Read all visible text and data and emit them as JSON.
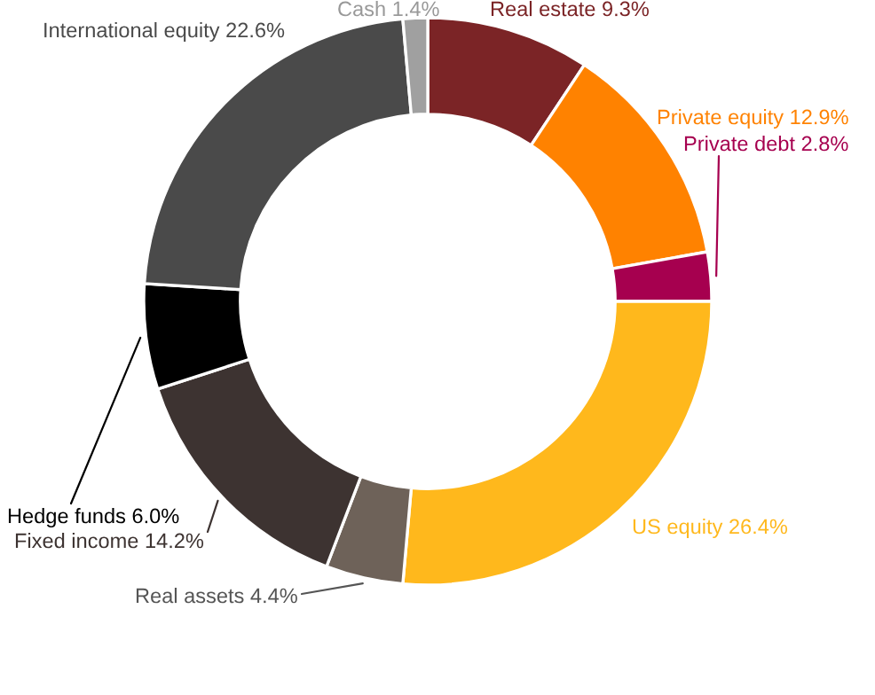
{
  "chart_data": {
    "type": "donut",
    "categories": [
      "Real estate 9.3%",
      "Private equity 12.9%",
      "Private debt 2.8%",
      "US equity 26.4%",
      "Real assets 4.4%",
      "Fixed income 14.2%",
      "Hedge funds 6.0%",
      "International equity 22.6%",
      "Cash 1.4%"
    ],
    "values": [
      9.3,
      12.9,
      2.8,
      26.4,
      4.4,
      14.2,
      6.0,
      22.6,
      1.4
    ],
    "colors": [
      "#7b2426",
      "#ff8200",
      "#a6004f",
      "#ffb81c",
      "#6e6259",
      "#3d3331",
      "#000000",
      "#4a4a4a",
      "#a0a0a0"
    ],
    "legend": false
  }
}
